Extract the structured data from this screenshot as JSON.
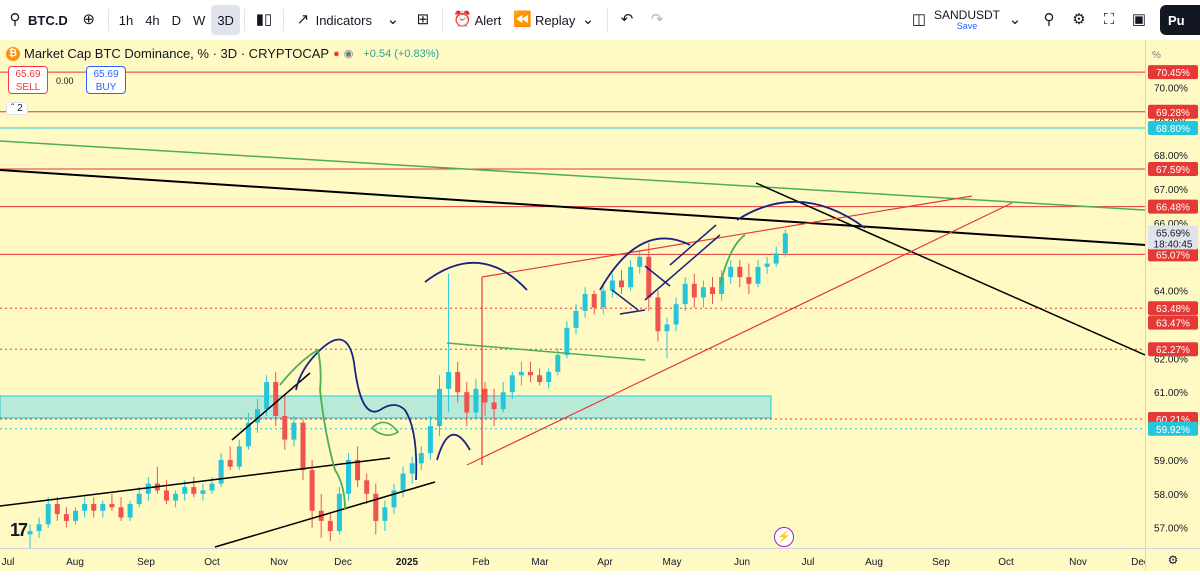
{
  "toolbar": {
    "symbol": "BTC.D",
    "intervals": [
      "1h",
      "4h",
      "D",
      "W",
      "3D"
    ],
    "active_interval": "3D",
    "indicators_label": "Indicators",
    "alert_label": "Alert",
    "replay_label": "Replay",
    "layout_name": "SANDUSDT",
    "layout_save": "Save",
    "publish_label": "Pu"
  },
  "legend": {
    "title": "Market Cap BTC Dominance, % · 3D · CRYPTOCAP",
    "change": "+0.54 (+0.83%)",
    "sell_price": "65.69",
    "sell_label": "SELL",
    "spread": "0.00",
    "buy_price": "65.69",
    "buy_label": "BUY",
    "collapse_count": "2"
  },
  "colors": {
    "up": "#26c6da",
    "down": "#ef5350",
    "background": "#fff9c4",
    "resistance_line": "#e53935",
    "trend_black": "#000000",
    "trend_green": "#4caf50",
    "zone": "#80deea",
    "drawing_blue": "#1a237e"
  },
  "chart_data": {
    "type": "candlestick",
    "title": "Market Cap BTC Dominance, % · 3D · CRYPTOCAP",
    "unit": "%",
    "y_ticks": [
      57.0,
      58.0,
      59.0,
      60.0,
      61.0,
      62.0,
      63.0,
      64.0,
      65.0,
      66.0,
      67.0,
      68.0,
      69.0,
      70.0
    ],
    "ylim": [
      56.4,
      71.4
    ],
    "x_labels": [
      "Jul",
      "Aug",
      "Sep",
      "Oct",
      "Nov",
      "Dec",
      "2025",
      "Feb",
      "Mar",
      "Apr",
      "May",
      "Jun",
      "Jul",
      "Aug",
      "Sep",
      "Oct",
      "Nov",
      "Dec"
    ],
    "price_labels": [
      {
        "value": 70.45,
        "text": "70.45%",
        "color": "#e53935",
        "style": "solid"
      },
      {
        "value": 69.28,
        "text": "69.28%",
        "color": "#e53935",
        "style": "solid"
      },
      {
        "value": 68.8,
        "text": "68.80%",
        "color": "#26c6da",
        "style": "solid"
      },
      {
        "value": 67.59,
        "text": "67.59%",
        "color": "#e53935",
        "style": "solid"
      },
      {
        "value": 66.48,
        "text": "66.48%",
        "color": "#e53935",
        "style": "solid"
      },
      {
        "value": 65.07,
        "text": "65.07%",
        "color": "#e53935",
        "style": "solid"
      },
      {
        "value": 63.48,
        "text": "63.48%",
        "color": "#e53935",
        "style": "dotted"
      },
      {
        "value": 63.47,
        "text": "63.47%",
        "color": "#e53935",
        "style": "none"
      },
      {
        "value": 62.27,
        "text": "62.27%",
        "color": "#e53935",
        "style": "dotted"
      },
      {
        "value": 60.21,
        "text": "60.21%",
        "color": "#e53935",
        "style": "dotted"
      },
      {
        "value": 59.92,
        "text": "59.92%",
        "color": "#26c6da",
        "style": "dotted"
      }
    ],
    "current_price": "65.69%",
    "countdown": "18:40:45",
    "candles": [
      [
        56.8,
        57.1,
        56.4,
        56.9
      ],
      [
        56.9,
        57.3,
        56.7,
        57.1
      ],
      [
        57.1,
        57.9,
        57.0,
        57.7
      ],
      [
        57.7,
        57.9,
        57.2,
        57.4
      ],
      [
        57.4,
        57.6,
        57.0,
        57.2
      ],
      [
        57.2,
        57.6,
        57.1,
        57.5
      ],
      [
        57.5,
        57.9,
        57.3,
        57.7
      ],
      [
        57.7,
        57.9,
        57.3,
        57.5
      ],
      [
        57.5,
        57.8,
        57.3,
        57.7
      ],
      [
        57.7,
        58.0,
        57.5,
        57.6
      ],
      [
        57.6,
        57.9,
        57.2,
        57.3
      ],
      [
        57.3,
        57.8,
        57.2,
        57.7
      ],
      [
        57.7,
        58.2,
        57.6,
        58.0
      ],
      [
        58.0,
        58.5,
        57.8,
        58.3
      ],
      [
        58.3,
        58.8,
        58.0,
        58.1
      ],
      [
        58.1,
        58.4,
        57.7,
        57.8
      ],
      [
        57.8,
        58.1,
        57.6,
        58.0
      ],
      [
        58.0,
        58.4,
        57.8,
        58.2
      ],
      [
        58.2,
        58.5,
        57.9,
        58.0
      ],
      [
        58.0,
        58.3,
        57.8,
        58.1
      ],
      [
        58.1,
        58.5,
        58.0,
        58.3
      ],
      [
        58.3,
        59.2,
        58.2,
        59.0
      ],
      [
        59.0,
        59.4,
        58.7,
        58.8
      ],
      [
        58.8,
        59.6,
        58.7,
        59.4
      ],
      [
        59.4,
        60.4,
        59.3,
        60.1
      ],
      [
        60.1,
        60.8,
        59.8,
        60.5
      ],
      [
        60.5,
        61.5,
        60.3,
        61.3
      ],
      [
        61.3,
        61.6,
        60.0,
        60.3
      ],
      [
        60.3,
        60.9,
        59.3,
        59.6
      ],
      [
        59.6,
        60.3,
        59.4,
        60.1
      ],
      [
        60.1,
        60.2,
        58.4,
        58.7
      ],
      [
        58.7,
        59.0,
        57.0,
        57.5
      ],
      [
        57.5,
        58.0,
        56.7,
        57.2
      ],
      [
        57.2,
        57.4,
        56.6,
        56.9
      ],
      [
        56.9,
        58.2,
        56.8,
        58.0
      ],
      [
        58.0,
        59.2,
        57.8,
        59.0
      ],
      [
        59.0,
        59.4,
        58.2,
        58.4
      ],
      [
        58.4,
        58.6,
        57.7,
        58.0
      ],
      [
        58.0,
        58.3,
        56.8,
        57.2
      ],
      [
        57.2,
        57.8,
        56.9,
        57.6
      ],
      [
        57.6,
        58.3,
        57.4,
        58.1
      ],
      [
        58.1,
        58.8,
        57.9,
        58.6
      ],
      [
        58.6,
        59.1,
        58.3,
        58.9
      ],
      [
        58.9,
        59.4,
        58.7,
        59.2
      ],
      [
        59.2,
        60.3,
        59.0,
        60.0
      ],
      [
        60.0,
        61.5,
        59.7,
        61.1
      ],
      [
        61.1,
        64.5,
        60.4,
        61.6
      ],
      [
        61.6,
        61.9,
        60.7,
        61.0
      ],
      [
        61.0,
        61.3,
        60.0,
        60.4
      ],
      [
        60.4,
        61.4,
        60.2,
        61.1
      ],
      [
        61.1,
        61.3,
        60.3,
        60.7
      ],
      [
        60.7,
        61.1,
        60.0,
        60.5
      ],
      [
        60.5,
        61.3,
        60.4,
        61.0
      ],
      [
        61.0,
        61.6,
        60.8,
        61.5
      ],
      [
        61.5,
        61.9,
        61.2,
        61.6
      ],
      [
        61.6,
        61.9,
        61.3,
        61.5
      ],
      [
        61.5,
        61.7,
        61.2,
        61.3
      ],
      [
        61.3,
        61.7,
        61.1,
        61.6
      ],
      [
        61.6,
        62.3,
        61.5,
        62.1
      ],
      [
        62.1,
        63.1,
        62.0,
        62.9
      ],
      [
        62.9,
        63.6,
        62.7,
        63.4
      ],
      [
        63.4,
        64.1,
        63.2,
        63.9
      ],
      [
        63.9,
        64.0,
        63.3,
        63.5
      ],
      [
        63.5,
        64.2,
        63.3,
        64.0
      ],
      [
        64.0,
        64.5,
        63.8,
        64.3
      ],
      [
        64.3,
        64.6,
        63.9,
        64.1
      ],
      [
        64.1,
        64.9,
        64.0,
        64.7
      ],
      [
        64.7,
        65.2,
        64.5,
        65.0
      ],
      [
        65.0,
        65.4,
        63.4,
        63.8
      ],
      [
        63.8,
        64.0,
        62.5,
        62.8
      ],
      [
        62.8,
        63.2,
        62.0,
        63.0
      ],
      [
        63.0,
        63.8,
        62.8,
        63.6
      ],
      [
        63.6,
        64.4,
        63.4,
        64.2
      ],
      [
        64.2,
        64.5,
        63.5,
        63.8
      ],
      [
        63.8,
        64.3,
        63.5,
        64.1
      ],
      [
        64.1,
        64.4,
        63.6,
        63.9
      ],
      [
        63.9,
        64.6,
        63.7,
        64.4
      ],
      [
        64.4,
        64.9,
        64.2,
        64.7
      ],
      [
        64.7,
        64.9,
        64.1,
        64.4
      ],
      [
        64.4,
        64.8,
        63.9,
        64.2
      ],
      [
        64.2,
        64.9,
        64.1,
        64.7
      ],
      [
        64.7,
        65.0,
        64.5,
        64.8
      ],
      [
        64.8,
        65.3,
        64.7,
        65.1
      ],
      [
        65.1,
        65.8,
        65.0,
        65.69
      ]
    ]
  }
}
